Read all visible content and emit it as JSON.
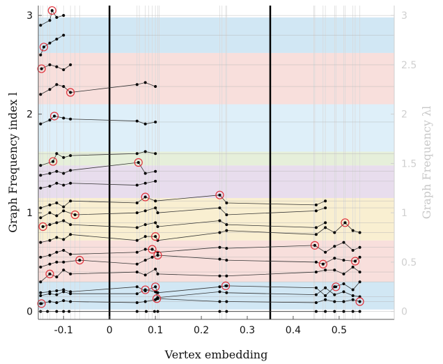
{
  "chart_data": {
    "type": "scatter",
    "xlabel": "Vertex embedding",
    "ylabel_left": "Graph Frequency index l",
    "ylabel_right": "Graph Frequency λl",
    "xlim": [
      -0.155,
      0.62
    ],
    "ylim": [
      -0.08,
      3.1
    ],
    "x_ticks": [
      "-0.1",
      "0",
      "0.1",
      "0.2",
      "0.3",
      "0.4",
      "0.5"
    ],
    "x_tick_values": [
      -0.1,
      0,
      0.1,
      0.2,
      0.3,
      0.4,
      0.5
    ],
    "y_ticks_left": [
      "0",
      "1",
      "2",
      "3"
    ],
    "y_tick_values_left": [
      0,
      1,
      2,
      3
    ],
    "y_ticks_right": [
      "0",
      "0.5",
      "1",
      "1.5",
      "2",
      "2.5",
      "3"
    ],
    "y_tick_values_right": [
      0,
      0.5,
      1,
      1.5,
      2,
      2.5,
      3
    ],
    "vertical_markers": [
      0,
      0.35
    ],
    "bands": [
      {
        "from": 0.02,
        "to": 0.3,
        "color": "#c9e3f2"
      },
      {
        "from": 0.3,
        "to": 0.38,
        "color": "#f7d9d6"
      },
      {
        "from": 0.38,
        "to": 0.72,
        "color": "#f7d9d6"
      },
      {
        "from": 0.72,
        "to": 1.15,
        "color": "#f8ecc9"
      },
      {
        "from": 1.15,
        "to": 1.48,
        "color": "#e4d7ea"
      },
      {
        "from": 1.48,
        "to": 1.62,
        "color": "#e2ecd3"
      },
      {
        "from": 1.62,
        "to": 2.1,
        "color": "#d8ecf8"
      },
      {
        "from": 2.1,
        "to": 2.62,
        "color": "#f7d9d6"
      },
      {
        "from": 2.62,
        "to": 2.98,
        "color": "#c9e3f2"
      }
    ],
    "highlighted": [
      {
        "x": -0.148,
        "y": 0.08
      },
      {
        "x": -0.13,
        "y": 0.38
      },
      {
        "x": -0.065,
        "y": 0.52
      },
      {
        "x": -0.145,
        "y": 0.86
      },
      {
        "x": -0.075,
        "y": 0.98
      },
      {
        "x": -0.123,
        "y": 1.52
      },
      {
        "x": -0.12,
        "y": 1.98
      },
      {
        "x": -0.085,
        "y": 2.22
      },
      {
        "x": -0.148,
        "y": 2.46
      },
      {
        "x": -0.143,
        "y": 2.68
      },
      {
        "x": -0.125,
        "y": 3.05
      },
      {
        "x": 0.063,
        "y": 1.51
      },
      {
        "x": 0.078,
        "y": 1.16
      },
      {
        "x": 0.1,
        "y": 0.76
      },
      {
        "x": 0.093,
        "y": 0.63
      },
      {
        "x": 0.105,
        "y": 0.57
      },
      {
        "x": 0.078,
        "y": 0.22
      },
      {
        "x": 0.1,
        "y": 0.25
      },
      {
        "x": 0.103,
        "y": 0.13
      },
      {
        "x": 0.24,
        "y": 1.18
      },
      {
        "x": 0.253,
        "y": 0.26
      },
      {
        "x": 0.447,
        "y": 0.67
      },
      {
        "x": 0.465,
        "y": 0.48
      },
      {
        "x": 0.513,
        "y": 0.9
      },
      {
        "x": 0.493,
        "y": 0.25
      },
      {
        "x": 0.535,
        "y": 0.51
      },
      {
        "x": 0.545,
        "y": 0.1
      }
    ],
    "series": [
      {
        "values_x": [
          -0.15,
          -0.135,
          -0.115,
          -0.1,
          -0.088,
          0.06,
          0.08,
          0.098,
          0.105,
          0.24,
          0.255,
          0.45,
          0.47,
          0.49,
          0.51,
          0.53,
          0.545
        ],
        "values_y": [
          0.0,
          0.0,
          0.0,
          0.0,
          0.0,
          0.0,
          0.0,
          0.0,
          0.0,
          0.0,
          0.0,
          0.0,
          0.0,
          0.0,
          0.0,
          0.0,
          0.0
        ]
      },
      {
        "values_x": [
          -0.15,
          -0.13,
          -0.115,
          -0.1,
          -0.085,
          0.06,
          0.078,
          0.1,
          0.105,
          0.24,
          0.255,
          0.45,
          0.47,
          0.49,
          0.51,
          0.53,
          0.545
        ],
        "values_y": [
          0.08,
          0.1,
          0.09,
          0.11,
          0.1,
          0.09,
          0.1,
          0.12,
          0.13,
          0.1,
          0.1,
          0.09,
          0.12,
          0.1,
          0.1,
          0.12,
          0.1
        ]
      },
      {
        "values_x": [
          -0.15,
          -0.13,
          -0.115,
          -0.1,
          -0.085,
          0.06,
          0.078,
          0.1,
          0.105,
          0.24,
          0.255,
          0.45,
          0.47,
          0.49,
          0.51,
          0.53,
          0.545
        ],
        "values_y": [
          0.16,
          0.18,
          0.17,
          0.2,
          0.18,
          0.18,
          0.22,
          0.2,
          0.14,
          0.2,
          0.19,
          0.17,
          0.24,
          0.17,
          0.2,
          0.16,
          0.15
        ]
      },
      {
        "values_x": [
          -0.15,
          -0.13,
          -0.115,
          -0.1,
          -0.085,
          0.06,
          0.078,
          0.1,
          0.105,
          0.24,
          0.255,
          0.45,
          0.47,
          0.49,
          0.51,
          0.53,
          0.545
        ],
        "values_y": [
          0.19,
          0.2,
          0.21,
          0.22,
          0.2,
          0.25,
          0.21,
          0.25,
          0.19,
          0.25,
          0.26,
          0.24,
          0.16,
          0.25,
          0.28,
          0.22,
          0.3
        ]
      },
      {
        "values_x": [
          -0.15,
          -0.13,
          -0.115,
          -0.1,
          -0.085,
          0.06,
          0.078,
          0.1,
          0.105,
          0.24,
          0.255,
          0.45,
          0.47,
          0.49,
          0.51,
          0.53,
          0.545
        ],
        "values_y": [
          0.3,
          0.38,
          0.35,
          0.42,
          0.38,
          0.4,
          0.37,
          0.43,
          0.38,
          0.36,
          0.36,
          0.4,
          0.42,
          0.42,
          0.38,
          0.45,
          0.4
        ]
      },
      {
        "values_x": [
          -0.15,
          -0.13,
          -0.115,
          -0.1,
          -0.065,
          0.06,
          0.078,
          0.093,
          0.105,
          0.24,
          0.255,
          0.45,
          0.465,
          0.49,
          0.51,
          0.535,
          0.545
        ],
        "values_y": [
          0.45,
          0.48,
          0.5,
          0.5,
          0.52,
          0.48,
          0.52,
          0.55,
          0.57,
          0.53,
          0.52,
          0.5,
          0.48,
          0.54,
          0.52,
          0.51,
          0.55
        ]
      },
      {
        "values_x": [
          -0.15,
          -0.13,
          -0.115,
          -0.1,
          -0.085,
          0.06,
          0.078,
          0.093,
          0.105,
          0.24,
          0.255,
          0.447,
          0.47,
          0.49,
          0.51,
          0.53,
          0.545
        ],
        "values_y": [
          0.55,
          0.57,
          0.6,
          0.62,
          0.58,
          0.6,
          0.63,
          0.63,
          0.6,
          0.65,
          0.64,
          0.67,
          0.6,
          0.66,
          0.7,
          0.62,
          0.65
        ]
      },
      {
        "values_x": [
          -0.15,
          -0.13,
          -0.115,
          -0.1,
          -0.085,
          0.06,
          0.078,
          0.1,
          0.105,
          0.24,
          0.255,
          0.45,
          0.47,
          0.49,
          0.513,
          0.53,
          0.545
        ],
        "values_y": [
          0.7,
          0.72,
          0.75,
          0.73,
          0.78,
          0.72,
          0.76,
          0.76,
          0.72,
          0.8,
          0.82,
          0.78,
          0.85,
          0.8,
          0.9,
          0.82,
          0.8
        ]
      },
      {
        "values_x": [
          -0.145,
          -0.13,
          -0.115,
          -0.1,
          -0.085,
          0.06,
          0.078,
          0.1,
          0.105,
          0.24,
          0.255,
          0.45,
          0.47
        ],
        "values_y": [
          0.86,
          0.88,
          0.9,
          0.92,
          0.88,
          0.85,
          0.88,
          0.9,
          0.86,
          0.92,
          0.88,
          0.85,
          0.9
        ]
      },
      {
        "values_x": [
          -0.15,
          -0.13,
          -0.115,
          -0.1,
          -0.075,
          0.06,
          0.078,
          0.1,
          0.105,
          0.24,
          0.255,
          0.45,
          0.47
        ],
        "values_y": [
          0.95,
          1.0,
          0.97,
          1.02,
          0.98,
          1.0,
          1.02,
          1.05,
          1.0,
          1.05,
          0.98,
          1.02,
          1.05
        ]
      },
      {
        "values_x": [
          -0.15,
          -0.13,
          -0.115,
          -0.1,
          -0.085,
          0.06,
          0.078,
          0.1,
          0.24,
          0.255,
          0.45,
          0.47
        ],
        "values_y": [
          1.05,
          1.08,
          1.1,
          1.06,
          1.12,
          1.1,
          1.16,
          1.12,
          1.18,
          1.1,
          1.08,
          1.12
        ]
      },
      {
        "values_x": [
          -0.15,
          -0.13,
          -0.115,
          -0.1,
          -0.085,
          0.06,
          0.078,
          0.1
        ],
        "values_y": [
          1.25,
          1.27,
          1.3,
          1.28,
          1.3,
          1.28,
          1.3,
          1.32
        ]
      },
      {
        "values_x": [
          -0.15,
          -0.13,
          -0.115,
          -0.1,
          -0.085,
          0.063,
          0.078,
          0.1
        ],
        "values_y": [
          1.38,
          1.4,
          1.42,
          1.4,
          1.43,
          1.51,
          1.4,
          1.42
        ]
      },
      {
        "values_x": [
          -0.15,
          -0.123,
          -0.115,
          -0.1,
          -0.085,
          0.06,
          0.078,
          0.1
        ],
        "values_y": [
          1.48,
          1.52,
          1.6,
          1.56,
          1.58,
          1.6,
          1.62,
          1.6
        ]
      },
      {
        "values_x": [
          -0.15,
          -0.13,
          -0.12,
          -0.1,
          -0.085,
          0.06,
          0.078,
          0.1
        ],
        "values_y": [
          1.9,
          1.94,
          1.98,
          1.96,
          1.95,
          1.93,
          1.9,
          1.92
        ]
      },
      {
        "values_x": [
          -0.15,
          -0.13,
          -0.115,
          -0.1,
          -0.085,
          0.06,
          0.078,
          0.1
        ],
        "values_y": [
          2.2,
          2.25,
          2.3,
          2.28,
          2.22,
          2.3,
          2.32,
          2.28
        ]
      },
      {
        "values_x": [
          -0.148,
          -0.13,
          -0.115,
          -0.1,
          -0.085
        ],
        "values_y": [
          2.46,
          2.5,
          2.48,
          2.45,
          2.5
        ]
      },
      {
        "values_x": [
          -0.15,
          -0.143,
          -0.13,
          -0.115,
          -0.1
        ],
        "values_y": [
          2.6,
          2.68,
          2.72,
          2.76,
          2.8
        ]
      },
      {
        "values_x": [
          -0.15,
          -0.13,
          -0.125,
          -0.115,
          -0.1
        ],
        "values_y": [
          2.9,
          2.95,
          3.05,
          2.98,
          3.0
        ]
      }
    ]
  }
}
